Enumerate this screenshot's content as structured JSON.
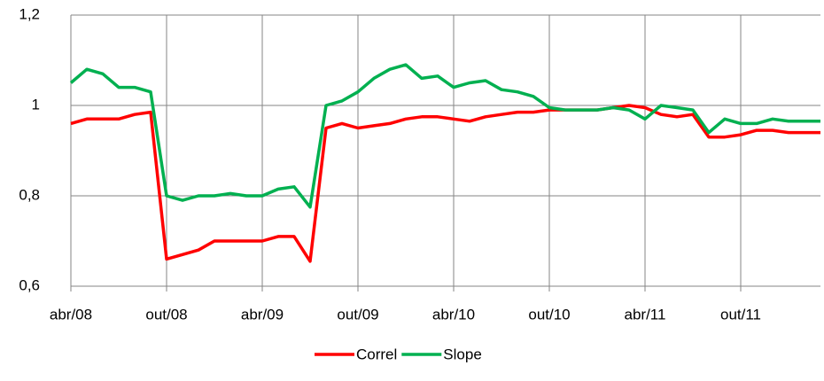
{
  "chart_data": {
    "type": "line",
    "categories": [
      "abr/08",
      null,
      null,
      null,
      null,
      null,
      "out/08",
      null,
      null,
      null,
      null,
      null,
      "abr/09",
      null,
      null,
      null,
      null,
      null,
      "out/09",
      null,
      null,
      null,
      null,
      null,
      "abr/10",
      null,
      null,
      null,
      null,
      null,
      "out/10",
      null,
      null,
      null,
      null,
      null,
      "abr/11",
      null,
      null,
      null,
      null,
      null,
      "out/11",
      null,
      null,
      null,
      null,
      null
    ],
    "series": [
      {
        "name": "Correl",
        "color": "#ff0000",
        "values": [
          0.96,
          0.97,
          0.97,
          0.97,
          0.98,
          0.985,
          0.66,
          0.67,
          0.68,
          0.7,
          0.7,
          0.7,
          0.7,
          0.71,
          0.71,
          0.655,
          0.95,
          0.96,
          0.95,
          0.955,
          0.96,
          0.97,
          0.975,
          0.975,
          0.97,
          0.965,
          0.975,
          0.98,
          0.985,
          0.985,
          0.99,
          0.99,
          0.99,
          0.99,
          0.995,
          1.0,
          0.995,
          0.98,
          0.975,
          0.98,
          0.93,
          0.93,
          0.935,
          0.945,
          0.945,
          0.94,
          0.94,
          0.94
        ]
      },
      {
        "name": "Slope",
        "color": "#00b050",
        "values": [
          1.05,
          1.08,
          1.07,
          1.04,
          1.04,
          1.03,
          0.8,
          0.79,
          0.8,
          0.8,
          0.805,
          0.8,
          0.8,
          0.815,
          0.82,
          0.775,
          1.0,
          1.01,
          1.03,
          1.06,
          1.08,
          1.09,
          1.06,
          1.065,
          1.04,
          1.05,
          1.055,
          1.035,
          1.03,
          1.02,
          0.995,
          0.99,
          0.99,
          0.99,
          0.995,
          0.99,
          0.97,
          1.0,
          0.995,
          0.99,
          0.94,
          0.97,
          0.96,
          0.96,
          0.97,
          0.965,
          0.965,
          0.965
        ]
      }
    ],
    "ylim": [
      0.6,
      1.2
    ],
    "yticks": [
      {
        "value": 0.6,
        "label": "0,6"
      },
      {
        "value": 0.8,
        "label": "0,8"
      },
      1,
      {
        "value": 1.2,
        "label": "1,2"
      }
    ],
    "grid": true,
    "legend": "bottom"
  }
}
